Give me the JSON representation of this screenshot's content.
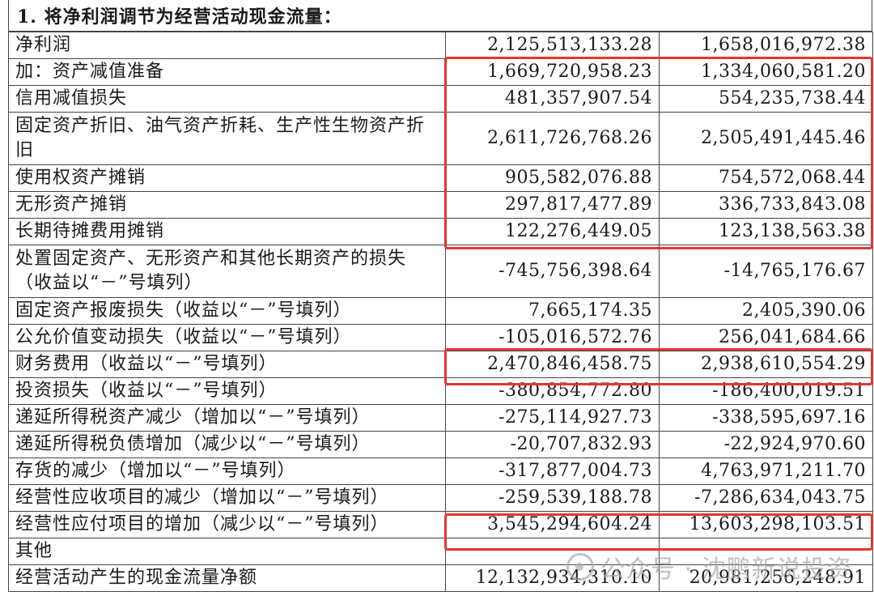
{
  "title": "1. 将净利润调节为经营活动现金流量：",
  "rows": [
    {
      "label": "净利润",
      "a": "2,125,513,133.28",
      "b": "1,658,016,972.38"
    },
    {
      "label": "加：资产减值准备",
      "a": "1,669,720,958.23",
      "b": "1,334,060,581.20"
    },
    {
      "label": "信用减值损失",
      "a": "481,357,907.54",
      "b": "554,235,738.44"
    },
    {
      "label": "固定资产折旧、油气资产折耗、生产性生物资产折旧",
      "a": "2,611,726,768.26",
      "b": "2,505,491,445.46"
    },
    {
      "label": "使用权资产摊销",
      "a": "905,582,076.88",
      "b": "754,572,068.44"
    },
    {
      "label": "无形资产摊销",
      "a": "297,817,477.89",
      "b": "336,733,843.08"
    },
    {
      "label": "长期待摊费用摊销",
      "a": "122,276,449.05",
      "b": "123,138,563.38"
    },
    {
      "label": "处置固定资产、无形资产和其他长期资产的损失（收益以“－”号填列）",
      "a": "-745,756,398.64",
      "b": "-14,765,176.67"
    },
    {
      "label": "固定资产报废损失（收益以“－”号填列）",
      "a": "7,665,174.35",
      "b": "2,405,390.06"
    },
    {
      "label": "公允价值变动损失（收益以“－”号填列）",
      "a": "-105,016,572.76",
      "b": "256,041,684.66"
    },
    {
      "label": "财务费用（收益以“－”号填列）",
      "a": "2,470,846,458.75",
      "b": "2,938,610,554.29"
    },
    {
      "label": "投资损失（收益以“－”号填列）",
      "a": "-380,854,772.80",
      "b": "-186,400,019.51"
    },
    {
      "label": "递延所得税资产减少（增加以“－”号填列）",
      "a": "-275,114,927.73",
      "b": "-338,595,697.16"
    },
    {
      "label": "递延所得税负债增加（减少以“－”号填列）",
      "a": "-20,707,832.93",
      "b": "-22,924,970.60"
    },
    {
      "label": "存货的减少（增加以“－”号填列）",
      "a": "-317,877,004.73",
      "b": "4,763,971,211.70"
    },
    {
      "label": "经营性应收项目的减少（增加以“－”号填列）",
      "a": "-259,539,188.78",
      "b": "-7,286,634,043.75"
    },
    {
      "label": "经营性应付项目的增加（减少以“－”号填列）",
      "a": "3,545,294,604.24",
      "b": "13,603,298,103.51"
    },
    {
      "label": "其他",
      "a": "",
      "b": ""
    },
    {
      "label": "经营活动产生的现金流量净额",
      "a": "12,132,934,310.10",
      "b": "20,981,256,248.91"
    }
  ],
  "watermark": "公众号 · 沈鹏新说投资",
  "highlight_color": "#e8342c"
}
